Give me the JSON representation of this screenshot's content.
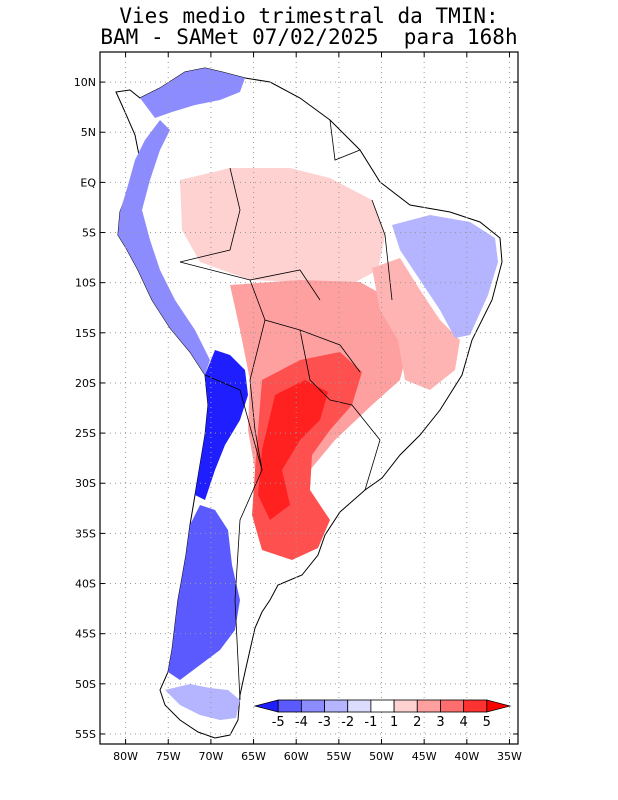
{
  "title": {
    "line1": "Vies medio trimestral da TMIN:",
    "line2": "BAM - SAMet 07/02/2025  para 168h"
  },
  "map": {
    "lat_labels": [
      "10N",
      "5N",
      "EQ",
      "5S",
      "10S",
      "15S",
      "20S",
      "25S",
      "30S",
      "35S",
      "40S",
      "45S",
      "50S",
      "55S"
    ],
    "lon_labels": [
      "80W",
      "75W",
      "70W",
      "65W",
      "60W",
      "55W",
      "50W",
      "45W",
      "40W",
      "35W"
    ],
    "extent": {
      "lon": [
        -83,
        -34
      ],
      "lat": [
        -56,
        13
      ]
    }
  },
  "colorbar": {
    "labels": [
      "-5",
      "-4",
      "-3",
      "-2",
      "-1",
      "1",
      "2",
      "3",
      "4",
      "5"
    ],
    "colors": [
      "#1e1eff",
      "#5a5aff",
      "#8c8cff",
      "#b4b4ff",
      "#dcdcff",
      "#ffffff",
      "#ffd2d2",
      "#ffa0a0",
      "#ff6e6e",
      "#ff3232",
      "#ff0000"
    ]
  }
}
